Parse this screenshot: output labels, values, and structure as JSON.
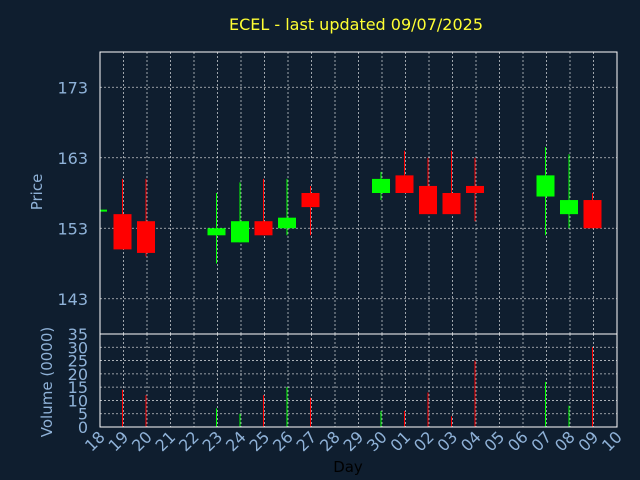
{
  "chart_data": {
    "type": "candlestick",
    "title": "ECEL - last updated 09/07/2025",
    "ylabel_price": "Price",
    "ylabel_volume": "Volume (0000)",
    "xlabel": "Day",
    "colors": {
      "up": "#00ff00",
      "down": "#ff0000",
      "background": "#0f1e2f",
      "title": "#ffff33",
      "tick": "#8fb2d8"
    },
    "price_ylim": [
      138,
      178
    ],
    "price_yticks": [
      143,
      153,
      163,
      173
    ],
    "volume_ylim": [
      0,
      35
    ],
    "volume_yticks": [
      0,
      5,
      10,
      15,
      20,
      25,
      30,
      35
    ],
    "x_ticks": [
      "18",
      "19",
      "20",
      "21",
      "22",
      "23",
      "24",
      "25",
      "26",
      "27",
      "28",
      "29",
      "30",
      "01",
      "02",
      "03",
      "04",
      "05",
      "06",
      "07",
      "08",
      "09",
      "10"
    ],
    "grid": true,
    "candles": [
      {
        "x": 0,
        "open": 155.5,
        "close": 155.5,
        "high": 155.5,
        "low": 155.5,
        "volume": 0
      },
      {
        "x": 1,
        "open": 155.0,
        "close": 150.0,
        "high": 160.0,
        "low": 150.0,
        "volume": 14
      },
      {
        "x": 2,
        "open": 154.0,
        "close": 149.5,
        "high": 160.0,
        "low": 149.0,
        "volume": 12
      },
      {
        "x": 5,
        "open": 152.0,
        "close": 153.0,
        "high": 158.0,
        "low": 148.0,
        "volume": 7
      },
      {
        "x": 6,
        "open": 151.0,
        "close": 154.0,
        "high": 159.5,
        "low": 151.0,
        "volume": 5
      },
      {
        "x": 7,
        "open": 154.0,
        "close": 152.0,
        "high": 160.0,
        "low": 152.0,
        "volume": 12
      },
      {
        "x": 8,
        "open": 153.0,
        "close": 154.5,
        "high": 160.0,
        "low": 152.0,
        "volume": 15
      },
      {
        "x": 9,
        "open": 158.0,
        "close": 156.0,
        "high": 159.0,
        "low": 152.0,
        "volume": 11
      },
      {
        "x": 12,
        "open": 158.0,
        "close": 160.0,
        "high": 161.0,
        "low": 157.0,
        "volume": 6
      },
      {
        "x": 13,
        "open": 160.5,
        "close": 158.0,
        "high": 164.0,
        "low": 158.0,
        "volume": 6
      },
      {
        "x": 14,
        "open": 159.0,
        "close": 155.0,
        "high": 163.0,
        "low": 155.0,
        "volume": 13
      },
      {
        "x": 15,
        "open": 158.0,
        "close": 155.0,
        "high": 164.0,
        "low": 155.0,
        "volume": 4
      },
      {
        "x": 16,
        "open": 159.0,
        "close": 158.0,
        "high": 163.0,
        "low": 154.0,
        "volume": 25
      },
      {
        "x": 19,
        "open": 157.5,
        "close": 160.5,
        "high": 164.5,
        "low": 152.0,
        "volume": 17
      },
      {
        "x": 20,
        "open": 155.0,
        "close": 157.0,
        "high": 163.5,
        "low": 153.0,
        "volume": 8
      },
      {
        "x": 21,
        "open": 157.0,
        "close": 153.0,
        "high": 158.0,
        "low": 153.0,
        "volume": 30
      }
    ]
  }
}
